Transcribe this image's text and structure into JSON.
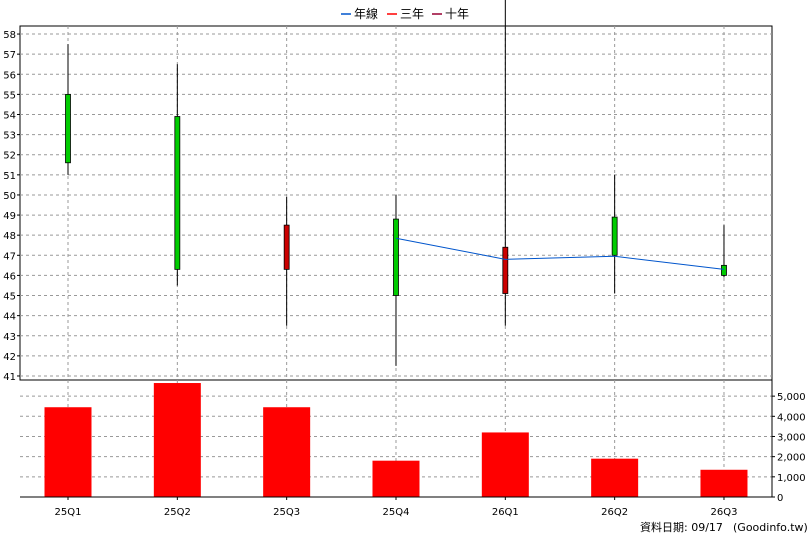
{
  "legend": {
    "items": [
      {
        "label": "年線",
        "color": "#0055cc"
      },
      {
        "label": "三年",
        "color": "#ff0000"
      },
      {
        "label": "十年",
        "color": "#990033"
      }
    ]
  },
  "footer": {
    "date_label": "資料日期: 09/17",
    "source_label": "(Goodinfo.tw)"
  },
  "colors": {
    "up": "#00cc00",
    "down": "#cc0000",
    "volume": "#ff0000",
    "ma_line": "#0055cc",
    "grid": "#999999"
  },
  "chart_data": [
    {
      "type": "candlestick",
      "categories": [
        "25Q1",
        "25Q2",
        "25Q3",
        "25Q4",
        "26Q1",
        "26Q2",
        "26Q3"
      ],
      "ohlc": [
        {
          "open": 51.6,
          "high": 57.5,
          "low": 51.0,
          "close": 55.0
        },
        {
          "open": 46.3,
          "high": 56.5,
          "low": 45.5,
          "close": 53.9
        },
        {
          "open": 48.5,
          "high": 49.9,
          "low": 43.5,
          "close": 46.3
        },
        {
          "open": 45.0,
          "high": 50.0,
          "low": 41.5,
          "close": 48.8
        },
        {
          "open": 47.4,
          "high": 62.0,
          "low": 43.5,
          "close": 45.1
        },
        {
          "open": 47.0,
          "high": 51.0,
          "low": 45.1,
          "close": 48.9
        },
        {
          "open": 46.0,
          "high": 48.5,
          "low": 45.9,
          "close": 46.5
        }
      ],
      "series": [
        {
          "name": "年線",
          "values": [
            null,
            null,
            null,
            47.85,
            46.8,
            46.95,
            46.3
          ]
        }
      ],
      "ylim": [
        40.8,
        58.4
      ],
      "yticks": [
        41,
        42,
        43,
        44,
        45,
        46,
        47,
        48,
        49,
        50,
        51,
        52,
        53,
        54,
        55,
        56,
        57,
        58
      ],
      "grid": true,
      "legend_position": "top-center"
    },
    {
      "type": "bar",
      "categories": [
        "25Q1",
        "25Q2",
        "25Q3",
        "25Q4",
        "26Q1",
        "26Q2",
        "26Q3"
      ],
      "values": [
        4450,
        5650,
        4450,
        1800,
        3200,
        1900,
        1350
      ],
      "ylim": [
        0,
        5800
      ],
      "yticks": [
        0,
        1000,
        2000,
        3000,
        4000,
        5000
      ],
      "ytick_labels": [
        "0",
        "1,000",
        "2,000",
        "3,000",
        "4,000",
        "5,000"
      ],
      "grid": true
    }
  ]
}
